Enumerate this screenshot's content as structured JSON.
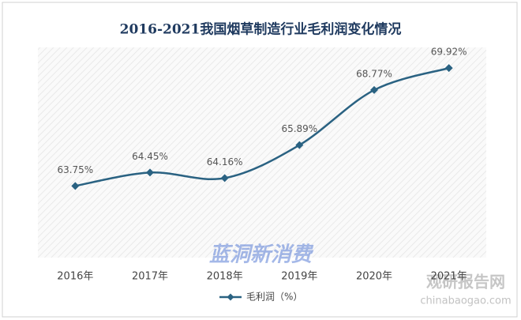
{
  "chart_data": {
    "type": "line",
    "title": "2016-2021我国烟草制造行业毛利润变化情况",
    "categories": [
      "2016年",
      "2017年",
      "2018年",
      "2019年",
      "2020年",
      "2021年"
    ],
    "series": [
      {
        "name": "毛利润（%）",
        "color": "#2a6282",
        "values": [
          63.75,
          64.45,
          64.16,
          65.89,
          68.77,
          69.92
        ],
        "value_labels": [
          "63.75%",
          "64.45%",
          "64.16%",
          "65.89%",
          "68.77%",
          "69.92%"
        ]
      }
    ],
    "ylim": [
      60,
      71
    ],
    "smooth": true,
    "legend": "bottom",
    "watermarks": [
      "蓝洞新消费",
      "观研报告网",
      "chinabaogao.com"
    ]
  }
}
